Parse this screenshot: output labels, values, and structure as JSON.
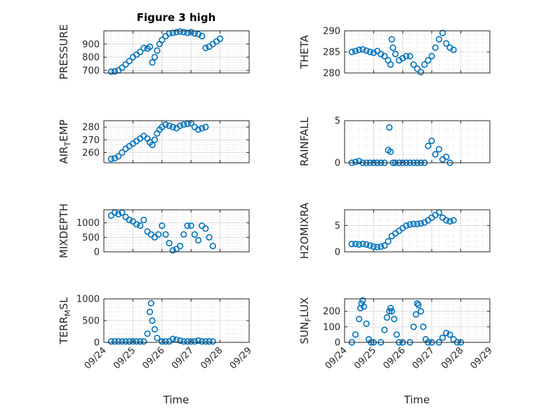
{
  "figure": {
    "title": "Figure 3 high",
    "xlabel": "Time",
    "marker_color": "#0072BD"
  },
  "chart_data": [
    {
      "type": "scatter",
      "ylabel": "PRESSURE",
      "ylim": [
        680,
        1000
      ],
      "yticks": [
        700,
        800,
        900
      ],
      "grid": true,
      "x_ticks": [
        "09/24",
        "09/25",
        "09/26",
        "09/27",
        "09/28",
        "09/29"
      ],
      "x_range": [
        "2023-09-24",
        "2023-09-29"
      ],
      "points": [
        [
          "09/24 06:00",
          690
        ],
        [
          "09/24 09:00",
          692
        ],
        [
          "09/24 12:00",
          700
        ],
        [
          "09/24 15:00",
          720
        ],
        [
          "09/24 18:00",
          745
        ],
        [
          "09/24 21:00",
          770
        ],
        [
          "09/25 00:00",
          800
        ],
        [
          "09/25 03:00",
          820
        ],
        [
          "09/25 06:00",
          840
        ],
        [
          "09/25 09:00",
          870
        ],
        [
          "09/25 12:00",
          865
        ],
        [
          "09/25 14:00",
          880
        ],
        [
          "09/25 16:00",
          760
        ],
        [
          "09/25 18:00",
          800
        ],
        [
          "09/25 20:00",
          850
        ],
        [
          "09/25 22:00",
          900
        ],
        [
          "09/26 00:00",
          930
        ],
        [
          "09/26 03:00",
          960
        ],
        [
          "09/26 06:00",
          980
        ],
        [
          "09/26 09:00",
          985
        ],
        [
          "09/26 12:00",
          990
        ],
        [
          "09/26 15:00",
          995
        ],
        [
          "09/26 18:00",
          990
        ],
        [
          "09/26 21:00",
          985
        ],
        [
          "09/27 00:00",
          990
        ],
        [
          "09/27 03:00",
          980
        ],
        [
          "09/27 06:00",
          975
        ],
        [
          "09/27 09:00",
          960
        ],
        [
          "09/27 12:00",
          870
        ],
        [
          "09/27 15:00",
          880
        ],
        [
          "09/27 18:00",
          900
        ],
        [
          "09/27 21:00",
          920
        ],
        [
          "09/28 00:00",
          940
        ]
      ]
    },
    {
      "type": "scatter",
      "ylabel": "THETA",
      "ylim": [
        280,
        290
      ],
      "yticks": [
        280,
        285,
        290
      ],
      "grid": true,
      "x_ticks": [
        "09/24",
        "09/25",
        "09/26",
        "09/27",
        "09/28",
        "09/29"
      ],
      "points": [
        [
          "09/24 06:00",
          285
        ],
        [
          "09/24 09:00",
          285.2
        ],
        [
          "09/24 12:00",
          285.5
        ],
        [
          "09/24 15:00",
          285.6
        ],
        [
          "09/24 18:00",
          285.3
        ],
        [
          "09/24 21:00",
          285
        ],
        [
          "09/25 00:00",
          284.8
        ],
        [
          "09/25 03:00",
          285.2
        ],
        [
          "09/25 06:00",
          284.5
        ],
        [
          "09/25 09:00",
          284
        ],
        [
          "09/25 12:00",
          283
        ],
        [
          "09/25 14:00",
          282
        ],
        [
          "09/25 15:00",
          288
        ],
        [
          "09/25 16:00",
          286
        ],
        [
          "09/25 18:00",
          284.5
        ],
        [
          "09/25 21:00",
          283
        ],
        [
          "09/26 00:00",
          283.5
        ],
        [
          "09/26 03:00",
          284
        ],
        [
          "09/26 06:00",
          284
        ],
        [
          "09/26 09:00",
          282
        ],
        [
          "09/26 12:00",
          281
        ],
        [
          "09/26 15:00",
          280.2
        ],
        [
          "09/26 18:00",
          282
        ],
        [
          "09/26 21:00",
          283
        ],
        [
          "09/27 00:00",
          284
        ],
        [
          "09/27 03:00",
          286
        ],
        [
          "09/27 06:00",
          288
        ],
        [
          "09/27 09:00",
          289.5
        ],
        [
          "09/27 12:00",
          287
        ],
        [
          "09/27 15:00",
          286
        ],
        [
          "09/27 18:00",
          285.5
        ]
      ]
    },
    {
      "type": "scatter",
      "ylabel": "AIR_TEMP",
      "ylim": [
        252,
        285
      ],
      "yticks": [
        260,
        270,
        280
      ],
      "grid": true,
      "x_ticks": [
        "09/24",
        "09/25",
        "09/26",
        "09/27",
        "09/28",
        "09/29"
      ],
      "points": [
        [
          "09/24 06:00",
          255
        ],
        [
          "09/24 09:00",
          255.5
        ],
        [
          "09/24 12:00",
          257
        ],
        [
          "09/24 15:00",
          260
        ],
        [
          "09/24 18:00",
          263
        ],
        [
          "09/24 21:00",
          265
        ],
        [
          "09/25 00:00",
          267
        ],
        [
          "09/25 03:00",
          269
        ],
        [
          "09/25 06:00",
          271
        ],
        [
          "09/25 09:00",
          273
        ],
        [
          "09/25 12:00",
          271
        ],
        [
          "09/25 14:00",
          268
        ],
        [
          "09/25 16:00",
          266
        ],
        [
          "09/25 18:00",
          270
        ],
        [
          "09/25 20:00",
          275
        ],
        [
          "09/25 22:00",
          278
        ],
        [
          "09/26 00:00",
          280
        ],
        [
          "09/26 03:00",
          282
        ],
        [
          "09/26 06:00",
          281
        ],
        [
          "09/26 09:00",
          280
        ],
        [
          "09/26 12:00",
          279
        ],
        [
          "09/26 15:00",
          281
        ],
        [
          "09/26 18:00",
          282
        ],
        [
          "09/26 21:00",
          282.5
        ],
        [
          "09/27 00:00",
          283
        ],
        [
          "09/27 03:00",
          280
        ],
        [
          "09/27 06:00",
          278
        ],
        [
          "09/27 09:00",
          279
        ],
        [
          "09/27 12:00",
          280
        ]
      ]
    },
    {
      "type": "scatter",
      "ylabel": "RAINFALL",
      "ylim": [
        0,
        5
      ],
      "yticks": [
        0,
        5
      ],
      "grid": true,
      "x_ticks": [
        "09/24",
        "09/25",
        "09/26",
        "09/27",
        "09/28",
        "09/29"
      ],
      "points": [
        [
          "09/24 06:00",
          0
        ],
        [
          "09/24 09:00",
          0.1
        ],
        [
          "09/24 12:00",
          0.2
        ],
        [
          "09/24 15:00",
          0
        ],
        [
          "09/24 18:00",
          0
        ],
        [
          "09/24 21:00",
          0
        ],
        [
          "09/25 00:00",
          0
        ],
        [
          "09/25 03:00",
          0
        ],
        [
          "09/25 06:00",
          0
        ],
        [
          "09/25 09:00",
          0
        ],
        [
          "09/25 12:00",
          1.5
        ],
        [
          "09/25 13:00",
          4.2
        ],
        [
          "09/25 14:00",
          1.3
        ],
        [
          "09/25 16:00",
          0
        ],
        [
          "09/25 18:00",
          0
        ],
        [
          "09/25 21:00",
          0
        ],
        [
          "09/26 00:00",
          0
        ],
        [
          "09/26 03:00",
          0
        ],
        [
          "09/26 06:00",
          0
        ],
        [
          "09/26 09:00",
          0
        ],
        [
          "09/26 12:00",
          0
        ],
        [
          "09/26 15:00",
          0
        ],
        [
          "09/26 18:00",
          0
        ],
        [
          "09/26 21:00",
          2
        ],
        [
          "09/27 00:00",
          2.6
        ],
        [
          "09/27 03:00",
          1
        ],
        [
          "09/27 06:00",
          1.6
        ],
        [
          "09/27 09:00",
          0.4
        ],
        [
          "09/27 12:00",
          0.7
        ],
        [
          "09/27 15:00",
          0
        ]
      ]
    },
    {
      "type": "scatter",
      "ylabel": "MIXDEPTH",
      "ylim": [
        0,
        1450
      ],
      "yticks": [
        0,
        500,
        1000
      ],
      "grid": true,
      "x_ticks": [
        "09/24",
        "09/25",
        "09/26",
        "09/27",
        "09/28",
        "09/29"
      ],
      "points": [
        [
          "09/24 06:00",
          1250
        ],
        [
          "09/24 09:00",
          1350
        ],
        [
          "09/24 12:00",
          1300
        ],
        [
          "09/24 15:00",
          1350
        ],
        [
          "09/24 18:00",
          1200
        ],
        [
          "09/24 21:00",
          1100
        ],
        [
          "09/25 00:00",
          1050
        ],
        [
          "09/25 03:00",
          950
        ],
        [
          "09/25 06:00",
          900
        ],
        [
          "09/25 09:00",
          1100
        ],
        [
          "09/25 12:00",
          700
        ],
        [
          "09/25 15:00",
          600
        ],
        [
          "09/25 18:00",
          500
        ],
        [
          "09/25 21:00",
          600
        ],
        [
          "09/26 00:00",
          900
        ],
        [
          "09/26 03:00",
          600
        ],
        [
          "09/26 06:00",
          300
        ],
        [
          "09/26 09:00",
          50
        ],
        [
          "09/26 12:00",
          100
        ],
        [
          "09/26 15:00",
          200
        ],
        [
          "09/26 18:00",
          600
        ],
        [
          "09/26 21:00",
          900
        ],
        [
          "09/27 00:00",
          900
        ],
        [
          "09/27 03:00",
          600
        ],
        [
          "09/27 06:00",
          400
        ],
        [
          "09/27 09:00",
          900
        ],
        [
          "09/27 12:00",
          800
        ],
        [
          "09/27 15:00",
          500
        ],
        [
          "09/27 18:00",
          200
        ]
      ]
    },
    {
      "type": "scatter",
      "ylabel": "H2OMIXRA",
      "ylim": [
        0,
        8
      ],
      "yticks": [
        0,
        5
      ],
      "grid": true,
      "x_ticks": [
        "09/24",
        "09/25",
        "09/26",
        "09/27",
        "09/28",
        "09/29"
      ],
      "points": [
        [
          "09/24 06:00",
          1.5
        ],
        [
          "09/24 09:00",
          1.5
        ],
        [
          "09/24 12:00",
          1.4
        ],
        [
          "09/24 15:00",
          1.5
        ],
        [
          "09/24 18:00",
          1.4
        ],
        [
          "09/24 21:00",
          1.2
        ],
        [
          "09/25 00:00",
          1
        ],
        [
          "09/25 03:00",
          0.9
        ],
        [
          "09/25 06:00",
          1
        ],
        [
          "09/25 09:00",
          1.2
        ],
        [
          "09/25 12:00",
          2
        ],
        [
          "09/25 15:00",
          3
        ],
        [
          "09/25 18:00",
          3.5
        ],
        [
          "09/25 21:00",
          4
        ],
        [
          "09/26 00:00",
          4.5
        ],
        [
          "09/26 03:00",
          5
        ],
        [
          "09/26 06:00",
          5.2
        ],
        [
          "09/26 09:00",
          5.3
        ],
        [
          "09/26 12:00",
          5.3
        ],
        [
          "09/26 15:00",
          5.4
        ],
        [
          "09/26 18:00",
          5.6
        ],
        [
          "09/26 21:00",
          6
        ],
        [
          "09/27 00:00",
          6.5
        ],
        [
          "09/27 03:00",
          7
        ],
        [
          "09/27 06:00",
          7.5
        ],
        [
          "09/27 09:00",
          6.5
        ],
        [
          "09/27 12:00",
          6
        ],
        [
          "09/27 15:00",
          5.8
        ],
        [
          "09/27 18:00",
          6
        ]
      ]
    },
    {
      "type": "scatter",
      "ylabel": "TERR_MSL",
      "ylim": [
        0,
        1000
      ],
      "yticks": [
        0,
        500,
        1000
      ],
      "grid": true,
      "x_ticks": [
        "09/24",
        "09/25",
        "09/26",
        "09/27",
        "09/28",
        "09/29"
      ],
      "points": [
        [
          "09/24 06:00",
          20
        ],
        [
          "09/24 09:00",
          20
        ],
        [
          "09/24 12:00",
          20
        ],
        [
          "09/24 15:00",
          20
        ],
        [
          "09/24 18:00",
          20
        ],
        [
          "09/24 21:00",
          20
        ],
        [
          "09/25 00:00",
          20
        ],
        [
          "09/25 03:00",
          20
        ],
        [
          "09/25 06:00",
          20
        ],
        [
          "09/25 09:00",
          20
        ],
        [
          "09/25 12:00",
          200
        ],
        [
          "09/25 14:00",
          700
        ],
        [
          "09/25 15:00",
          900
        ],
        [
          "09/25 16:00",
          500
        ],
        [
          "09/25 18:00",
          300
        ],
        [
          "09/25 20:00",
          100
        ],
        [
          "09/26 00:00",
          20
        ],
        [
          "09/26 03:00",
          20
        ],
        [
          "09/26 06:00",
          20
        ],
        [
          "09/26 09:00",
          80
        ],
        [
          "09/26 12:00",
          60
        ],
        [
          "09/26 15:00",
          40
        ],
        [
          "09/26 18:00",
          20
        ],
        [
          "09/26 21:00",
          20
        ],
        [
          "09/27 00:00",
          20
        ],
        [
          "09/27 03:00",
          20
        ],
        [
          "09/27 06:00",
          40
        ],
        [
          "09/27 09:00",
          20
        ],
        [
          "09/27 12:00",
          20
        ],
        [
          "09/27 15:00",
          20
        ],
        [
          "09/27 18:00",
          20
        ]
      ]
    },
    {
      "type": "scatter",
      "ylabel": "SUN_FLUX",
      "ylim": [
        0,
        280
      ],
      "yticks": [
        0,
        100,
        200
      ],
      "grid": true,
      "x_ticks": [
        "09/24",
        "09/25",
        "09/26",
        "09/27",
        "09/28",
        "09/29"
      ],
      "points": [
        [
          "09/24 06:00",
          0
        ],
        [
          "09/24 09:00",
          50
        ],
        [
          "09/24 12:00",
          150
        ],
        [
          "09/24 13:00",
          220
        ],
        [
          "09/24 14:00",
          250
        ],
        [
          "09/24 15:00",
          270
        ],
        [
          "09/24 16:00",
          230
        ],
        [
          "09/24 18:00",
          120
        ],
        [
          "09/24 20:00",
          20
        ],
        [
          "09/24 22:00",
          0
        ],
        [
          "09/25 00:00",
          0
        ],
        [
          "09/25 06:00",
          0
        ],
        [
          "09/25 09:00",
          80
        ],
        [
          "09/25 11:00",
          160
        ],
        [
          "09/25 13:00",
          200
        ],
        [
          "09/25 14:00",
          220
        ],
        [
          "09/25 15:00",
          200
        ],
        [
          "09/25 17:00",
          150
        ],
        [
          "09/25 19:00",
          50
        ],
        [
          "09/25 21:00",
          0
        ],
        [
          "09/26 00:00",
          0
        ],
        [
          "09/26 06:00",
          0
        ],
        [
          "09/26 09:00",
          100
        ],
        [
          "09/26 11:00",
          180
        ],
        [
          "09/26 12:00",
          250
        ],
        [
          "09/26 13:00",
          240
        ],
        [
          "09/26 15:00",
          200
        ],
        [
          "09/26 17:00",
          100
        ],
        [
          "09/26 19:00",
          20
        ],
        [
          "09/26 21:00",
          0
        ],
        [
          "09/27 00:00",
          0
        ],
        [
          "09/27 06:00",
          0
        ],
        [
          "09/27 09:00",
          30
        ],
        [
          "09/27 12:00",
          60
        ],
        [
          "09/27 15:00",
          50
        ],
        [
          "09/27 18:00",
          20
        ],
        [
          "09/27 21:00",
          0
        ],
        [
          "09/28 00:00",
          0
        ]
      ]
    }
  ]
}
